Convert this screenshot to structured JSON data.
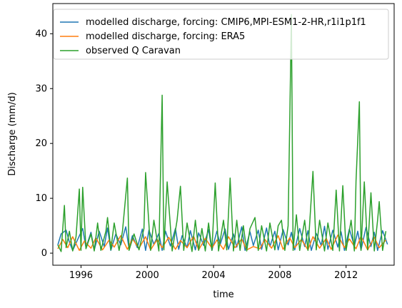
{
  "chart_data": {
    "type": "line",
    "xlabel": "time",
    "ylabel": "Discharge (mm/d)",
    "x_ticks": [
      "1996",
      "2000",
      "2004",
      "2008",
      "2012"
    ],
    "y_ticks": [
      "0",
      "10",
      "20",
      "30",
      "40"
    ],
    "xlim": [
      1994.3,
      2014.9
    ],
    "ylim": [
      -2.2,
      45.5
    ],
    "grid": false,
    "legend_position": "top-right",
    "series": [
      {
        "name": "modelled discharge, forcing: CMIP6,MPI-ESM1-2-HR,r1i1p1f1",
        "color": "#1f77b4",
        "x": [
          1994.6,
          1994.8,
          1995.1,
          1995.3,
          1995.5,
          1995.8,
          1996.1,
          1996.3,
          1996.6,
          1996.8,
          1997.1,
          1997.4,
          1997.6,
          1997.8,
          1998.1,
          1998.4,
          1998.7,
          1998.9,
          1999.1,
          1999.4,
          1999.7,
          1999.9,
          2000.1,
          2000.4,
          2000.7,
          2000.9,
          2001.1,
          2001.4,
          2001.7,
          2001.9,
          2002.1,
          2002.4,
          2002.6,
          2002.9,
          2003.1,
          2003.4,
          2003.7,
          2003.9,
          2004.2,
          2004.4,
          2004.7,
          2004.9,
          2005.2,
          2005.4,
          2005.7,
          2005.9,
          2006.2,
          2006.4,
          2006.7,
          2006.9,
          2007.2,
          2007.4,
          2007.7,
          2007.9,
          2008.2,
          2008.5,
          2008.7,
          2008.9,
          2009.2,
          2009.5,
          2009.7,
          2009.9,
          2010.2,
          2010.5,
          2010.7,
          2010.9,
          2011.2,
          2011.5,
          2011.7,
          2011.9,
          2012.2,
          2012.5,
          2012.7,
          2012.9,
          2013.2,
          2013.5,
          2013.7,
          2013.9,
          2014.2,
          2014.5
        ],
        "y": [
          1.5,
          3.5,
          4.2,
          2.0,
          0.5,
          2.5,
          4.5,
          1.0,
          3.8,
          0.6,
          4.0,
          1.2,
          4.6,
          0.5,
          3.5,
          1.5,
          4.8,
          0.8,
          3.2,
          1.0,
          4.4,
          0.5,
          4.2,
          1.6,
          3.6,
          0.5,
          4.0,
          1.3,
          4.5,
          0.7,
          3.2,
          1.0,
          4.1,
          0.6,
          3.7,
          1.4,
          4.3,
          0.5,
          4.0,
          1.6,
          4.4,
          0.7,
          3.5,
          1.1,
          4.8,
          0.5,
          3.9,
          1.4,
          4.2,
          0.7,
          4.6,
          1.2,
          4.0,
          0.6,
          4.3,
          1.5,
          3.8,
          0.6,
          4.5,
          1.2,
          4.1,
          0.5,
          3.6,
          1.4,
          4.9,
          0.7,
          4.2,
          1.1,
          3.9,
          0.5,
          4.4,
          1.3,
          4.0,
          0.6,
          4.7,
          1.2,
          3.8,
          0.5,
          4.1,
          1.6
        ]
      },
      {
        "name": "modelled discharge, forcing: ERA5",
        "color": "#ff7f0e",
        "x": [
          1994.6,
          1994.9,
          1995.2,
          1995.5,
          1995.9,
          1996.2,
          1996.6,
          1996.9,
          1997.3,
          1997.7,
          1998.0,
          1998.4,
          1998.8,
          1999.1,
          1999.5,
          1999.9,
          2000.2,
          2000.6,
          2000.9,
          2001.3,
          2001.7,
          2002.0,
          2002.4,
          2002.8,
          2003.1,
          2003.5,
          2003.9,
          2004.2,
          2004.6,
          2004.9,
          2005.3,
          2005.7,
          2006.0,
          2006.4,
          2006.8,
          2007.1,
          2007.5,
          2007.9,
          2008.2,
          2008.6,
          2008.9,
          2009.3,
          2009.7,
          2010.0,
          2010.4,
          2010.8,
          2011.1,
          2011.5,
          2011.9,
          2012.2,
          2012.6,
          2012.9,
          2013.3,
          2013.7,
          2014.0,
          2014.4
        ],
        "y": [
          0.8,
          2.5,
          1.0,
          3.0,
          0.5,
          2.2,
          0.9,
          2.8,
          0.6,
          2.4,
          1.1,
          3.2,
          0.7,
          2.6,
          0.9,
          3.0,
          0.6,
          2.5,
          1.0,
          2.9,
          0.7,
          2.3,
          1.0,
          3.1,
          0.6,
          2.7,
          0.9,
          2.4,
          0.7,
          3.0,
          1.0,
          2.6,
          0.6,
          1.2,
          0.8,
          2.5,
          0.9,
          3.2,
          0.7,
          2.8,
          1.0,
          2.5,
          0.6,
          3.0,
          0.9,
          2.7,
          0.7,
          3.3,
          1.0,
          2.6,
          0.8,
          3.1,
          0.6,
          2.9,
          1.0,
          2.4
        ]
      },
      {
        "name": "observed Q Caravan",
        "color": "#2ca02c",
        "x": [
          1994.6,
          1994.8,
          1994.9,
          1995.0,
          1995.1,
          1995.3,
          1995.5,
          1995.7,
          1995.9,
          1996.0,
          1996.1,
          1996.3,
          1996.6,
          1996.8,
          1997.0,
          1997.2,
          1997.5,
          1997.6,
          1997.8,
          1998.0,
          1998.3,
          1998.5,
          1998.8,
          1998.9,
          1999.2,
          1999.5,
          1999.8,
          1999.9,
          2000.2,
          2000.4,
          2000.7,
          2000.9,
          2001.0,
          2001.2,
          2001.5,
          2001.8,
          2002.0,
          2002.2,
          2002.4,
          2002.7,
          2002.9,
          2003.1,
          2003.3,
          2003.5,
          2003.7,
          2003.9,
          2004.1,
          2004.3,
          2004.6,
          2004.8,
          2005.0,
          2005.2,
          2005.4,
          2005.6,
          2005.8,
          2006.0,
          2006.2,
          2006.5,
          2006.7,
          2006.9,
          2007.2,
          2007.4,
          2007.7,
          2007.9,
          2008.1,
          2008.3,
          2008.5,
          2008.7,
          2008.8,
          2009.0,
          2009.2,
          2009.5,
          2009.7,
          2010.0,
          2010.2,
          2010.4,
          2010.7,
          2010.9,
          2011.2,
          2011.4,
          2011.6,
          2011.8,
          2012.0,
          2012.3,
          2012.5,
          2012.6,
          2012.8,
          2012.9,
          2013.1,
          2013.3,
          2013.5,
          2013.7,
          2013.9,
          2014.0,
          2014.2,
          2014.4
        ],
        "y": [
          1.5,
          0.3,
          4.5,
          8.7,
          1.0,
          4.0,
          0.4,
          3.0,
          11.7,
          0.5,
          12.0,
          0.8,
          3.5,
          0.4,
          5.5,
          0.5,
          4.0,
          6.5,
          0.6,
          5.5,
          0.5,
          4.0,
          13.7,
          0.5,
          3.5,
          0.6,
          4.5,
          14.7,
          0.5,
          6.0,
          0.4,
          28.8,
          0.6,
          13.0,
          0.4,
          6.0,
          12.2,
          0.5,
          5.5,
          0.3,
          6.0,
          0.5,
          4.5,
          0.4,
          5.5,
          0.5,
          12.8,
          0.4,
          6.0,
          0.6,
          13.7,
          0.4,
          6.0,
          0.5,
          5.0,
          0.4,
          4.5,
          6.5,
          0.5,
          5.0,
          0.4,
          5.5,
          0.6,
          5.0,
          6.0,
          0.5,
          5.0,
          43.5,
          0.5,
          7.0,
          0.5,
          6.0,
          0.5,
          14.9,
          0.6,
          6.0,
          0.4,
          5.5,
          0.5,
          11.5,
          0.4,
          12.3,
          0.5,
          6.0,
          0.4,
          13.1,
          27.6,
          0.5,
          13.0,
          0.6,
          11.0,
          0.4,
          6.0,
          9.4,
          0.5,
          4.0
        ]
      }
    ]
  }
}
